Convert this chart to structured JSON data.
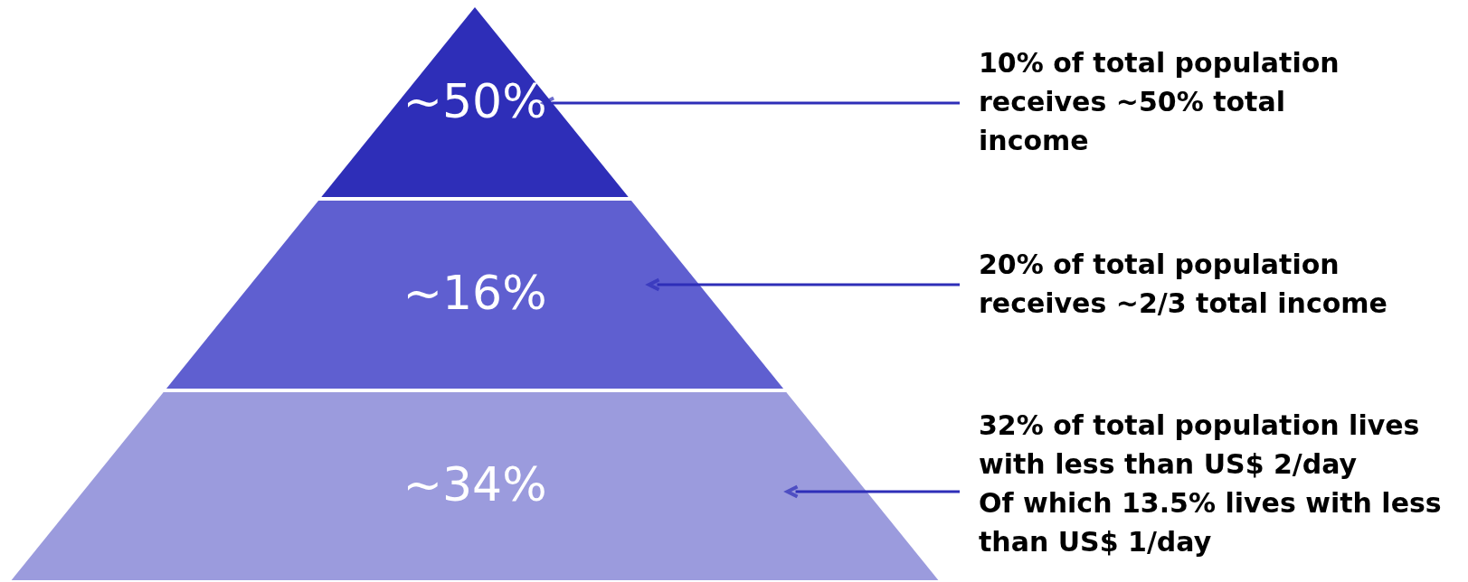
{
  "chart_data": {
    "type": "other",
    "categories": [
      null,
      null,
      null
    ],
    "values": [
      50,
      16,
      34
    ],
    "value_labels": [
      "~50%",
      "~16%",
      "~34%"
    ],
    "colors": [
      "#2e2eb8",
      "#5f5fd0",
      "#9b9bdd"
    ],
    "annotations": [
      "10% of total population\nreceives ~50% total\nincome",
      "20% of total population\nreceives ~2/3 total income",
      "32% of total population lives\nwith less than US$ 2/day\nOf which 13.5% lives with less\nthan US$ 1/day"
    ]
  }
}
